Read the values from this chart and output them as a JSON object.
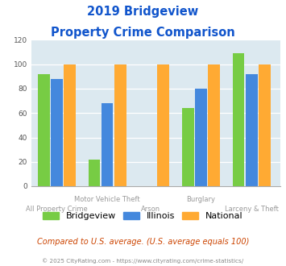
{
  "title_line1": "2019 Bridgeview",
  "title_line2": "Property Crime Comparison",
  "categories": [
    "All Property Crime",
    "Motor Vehicle Theft",
    "Arson",
    "Burglary",
    "Larceny & Theft"
  ],
  "series": {
    "Bridgeview": [
      92,
      22,
      0,
      64,
      109
    ],
    "Illinois": [
      88,
      68,
      0,
      80,
      92
    ],
    "National": [
      100,
      100,
      100,
      100,
      100
    ]
  },
  "colors": {
    "Bridgeview": "#77cc44",
    "Illinois": "#4488dd",
    "National": "#ffaa33"
  },
  "ylim": [
    0,
    120
  ],
  "yticks": [
    0,
    20,
    40,
    60,
    80,
    100,
    120
  ],
  "footnote": "Compared to U.S. average. (U.S. average equals 100)",
  "copyright": "© 2025 CityRating.com - https://www.cityrating.com/crime-statistics/",
  "background_color": "#dce9f0",
  "title_color": "#1155cc",
  "footnote_color": "#cc4400",
  "copyright_color": "#888888",
  "label_color": "#999999"
}
